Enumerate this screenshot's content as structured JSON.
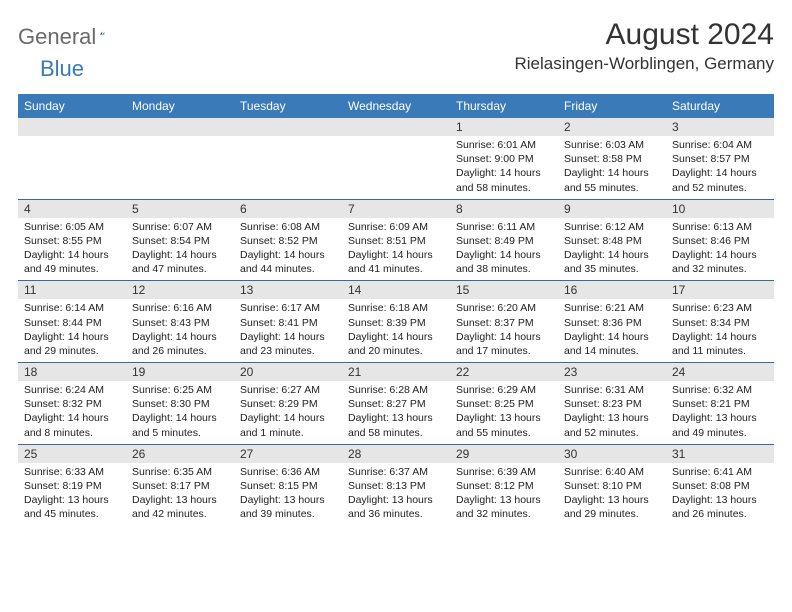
{
  "logo": {
    "text_gray": "General",
    "text_blue": "Blue"
  },
  "title": "August 2024",
  "location": "Rielasingen-Worblingen, Germany",
  "colors": {
    "header_bg": "#3a7ab8",
    "header_text": "#ffffff",
    "band_bg": "#e6e6e6",
    "rule": "#3a6a9a",
    "body_text": "#222222",
    "logo_gray": "#6a6a6a",
    "logo_blue": "#3a7ab8"
  },
  "day_names": [
    "Sunday",
    "Monday",
    "Tuesday",
    "Wednesday",
    "Thursday",
    "Friday",
    "Saturday"
  ],
  "weeks": [
    [
      {
        "n": "",
        "sr": "",
        "ss": "",
        "dl": ""
      },
      {
        "n": "",
        "sr": "",
        "ss": "",
        "dl": ""
      },
      {
        "n": "",
        "sr": "",
        "ss": "",
        "dl": ""
      },
      {
        "n": "",
        "sr": "",
        "ss": "",
        "dl": ""
      },
      {
        "n": "1",
        "sr": "Sunrise: 6:01 AM",
        "ss": "Sunset: 9:00 PM",
        "dl": "Daylight: 14 hours and 58 minutes."
      },
      {
        "n": "2",
        "sr": "Sunrise: 6:03 AM",
        "ss": "Sunset: 8:58 PM",
        "dl": "Daylight: 14 hours and 55 minutes."
      },
      {
        "n": "3",
        "sr": "Sunrise: 6:04 AM",
        "ss": "Sunset: 8:57 PM",
        "dl": "Daylight: 14 hours and 52 minutes."
      }
    ],
    [
      {
        "n": "4",
        "sr": "Sunrise: 6:05 AM",
        "ss": "Sunset: 8:55 PM",
        "dl": "Daylight: 14 hours and 49 minutes."
      },
      {
        "n": "5",
        "sr": "Sunrise: 6:07 AM",
        "ss": "Sunset: 8:54 PM",
        "dl": "Daylight: 14 hours and 47 minutes."
      },
      {
        "n": "6",
        "sr": "Sunrise: 6:08 AM",
        "ss": "Sunset: 8:52 PM",
        "dl": "Daylight: 14 hours and 44 minutes."
      },
      {
        "n": "7",
        "sr": "Sunrise: 6:09 AM",
        "ss": "Sunset: 8:51 PM",
        "dl": "Daylight: 14 hours and 41 minutes."
      },
      {
        "n": "8",
        "sr": "Sunrise: 6:11 AM",
        "ss": "Sunset: 8:49 PM",
        "dl": "Daylight: 14 hours and 38 minutes."
      },
      {
        "n": "9",
        "sr": "Sunrise: 6:12 AM",
        "ss": "Sunset: 8:48 PM",
        "dl": "Daylight: 14 hours and 35 minutes."
      },
      {
        "n": "10",
        "sr": "Sunrise: 6:13 AM",
        "ss": "Sunset: 8:46 PM",
        "dl": "Daylight: 14 hours and 32 minutes."
      }
    ],
    [
      {
        "n": "11",
        "sr": "Sunrise: 6:14 AM",
        "ss": "Sunset: 8:44 PM",
        "dl": "Daylight: 14 hours and 29 minutes."
      },
      {
        "n": "12",
        "sr": "Sunrise: 6:16 AM",
        "ss": "Sunset: 8:43 PM",
        "dl": "Daylight: 14 hours and 26 minutes."
      },
      {
        "n": "13",
        "sr": "Sunrise: 6:17 AM",
        "ss": "Sunset: 8:41 PM",
        "dl": "Daylight: 14 hours and 23 minutes."
      },
      {
        "n": "14",
        "sr": "Sunrise: 6:18 AM",
        "ss": "Sunset: 8:39 PM",
        "dl": "Daylight: 14 hours and 20 minutes."
      },
      {
        "n": "15",
        "sr": "Sunrise: 6:20 AM",
        "ss": "Sunset: 8:37 PM",
        "dl": "Daylight: 14 hours and 17 minutes."
      },
      {
        "n": "16",
        "sr": "Sunrise: 6:21 AM",
        "ss": "Sunset: 8:36 PM",
        "dl": "Daylight: 14 hours and 14 minutes."
      },
      {
        "n": "17",
        "sr": "Sunrise: 6:23 AM",
        "ss": "Sunset: 8:34 PM",
        "dl": "Daylight: 14 hours and 11 minutes."
      }
    ],
    [
      {
        "n": "18",
        "sr": "Sunrise: 6:24 AM",
        "ss": "Sunset: 8:32 PM",
        "dl": "Daylight: 14 hours and 8 minutes."
      },
      {
        "n": "19",
        "sr": "Sunrise: 6:25 AM",
        "ss": "Sunset: 8:30 PM",
        "dl": "Daylight: 14 hours and 5 minutes."
      },
      {
        "n": "20",
        "sr": "Sunrise: 6:27 AM",
        "ss": "Sunset: 8:29 PM",
        "dl": "Daylight: 14 hours and 1 minute."
      },
      {
        "n": "21",
        "sr": "Sunrise: 6:28 AM",
        "ss": "Sunset: 8:27 PM",
        "dl": "Daylight: 13 hours and 58 minutes."
      },
      {
        "n": "22",
        "sr": "Sunrise: 6:29 AM",
        "ss": "Sunset: 8:25 PM",
        "dl": "Daylight: 13 hours and 55 minutes."
      },
      {
        "n": "23",
        "sr": "Sunrise: 6:31 AM",
        "ss": "Sunset: 8:23 PM",
        "dl": "Daylight: 13 hours and 52 minutes."
      },
      {
        "n": "24",
        "sr": "Sunrise: 6:32 AM",
        "ss": "Sunset: 8:21 PM",
        "dl": "Daylight: 13 hours and 49 minutes."
      }
    ],
    [
      {
        "n": "25",
        "sr": "Sunrise: 6:33 AM",
        "ss": "Sunset: 8:19 PM",
        "dl": "Daylight: 13 hours and 45 minutes."
      },
      {
        "n": "26",
        "sr": "Sunrise: 6:35 AM",
        "ss": "Sunset: 8:17 PM",
        "dl": "Daylight: 13 hours and 42 minutes."
      },
      {
        "n": "27",
        "sr": "Sunrise: 6:36 AM",
        "ss": "Sunset: 8:15 PM",
        "dl": "Daylight: 13 hours and 39 minutes."
      },
      {
        "n": "28",
        "sr": "Sunrise: 6:37 AM",
        "ss": "Sunset: 8:13 PM",
        "dl": "Daylight: 13 hours and 36 minutes."
      },
      {
        "n": "29",
        "sr": "Sunrise: 6:39 AM",
        "ss": "Sunset: 8:12 PM",
        "dl": "Daylight: 13 hours and 32 minutes."
      },
      {
        "n": "30",
        "sr": "Sunrise: 6:40 AM",
        "ss": "Sunset: 8:10 PM",
        "dl": "Daylight: 13 hours and 29 minutes."
      },
      {
        "n": "31",
        "sr": "Sunrise: 6:41 AM",
        "ss": "Sunset: 8:08 PM",
        "dl": "Daylight: 13 hours and 26 minutes."
      }
    ]
  ]
}
